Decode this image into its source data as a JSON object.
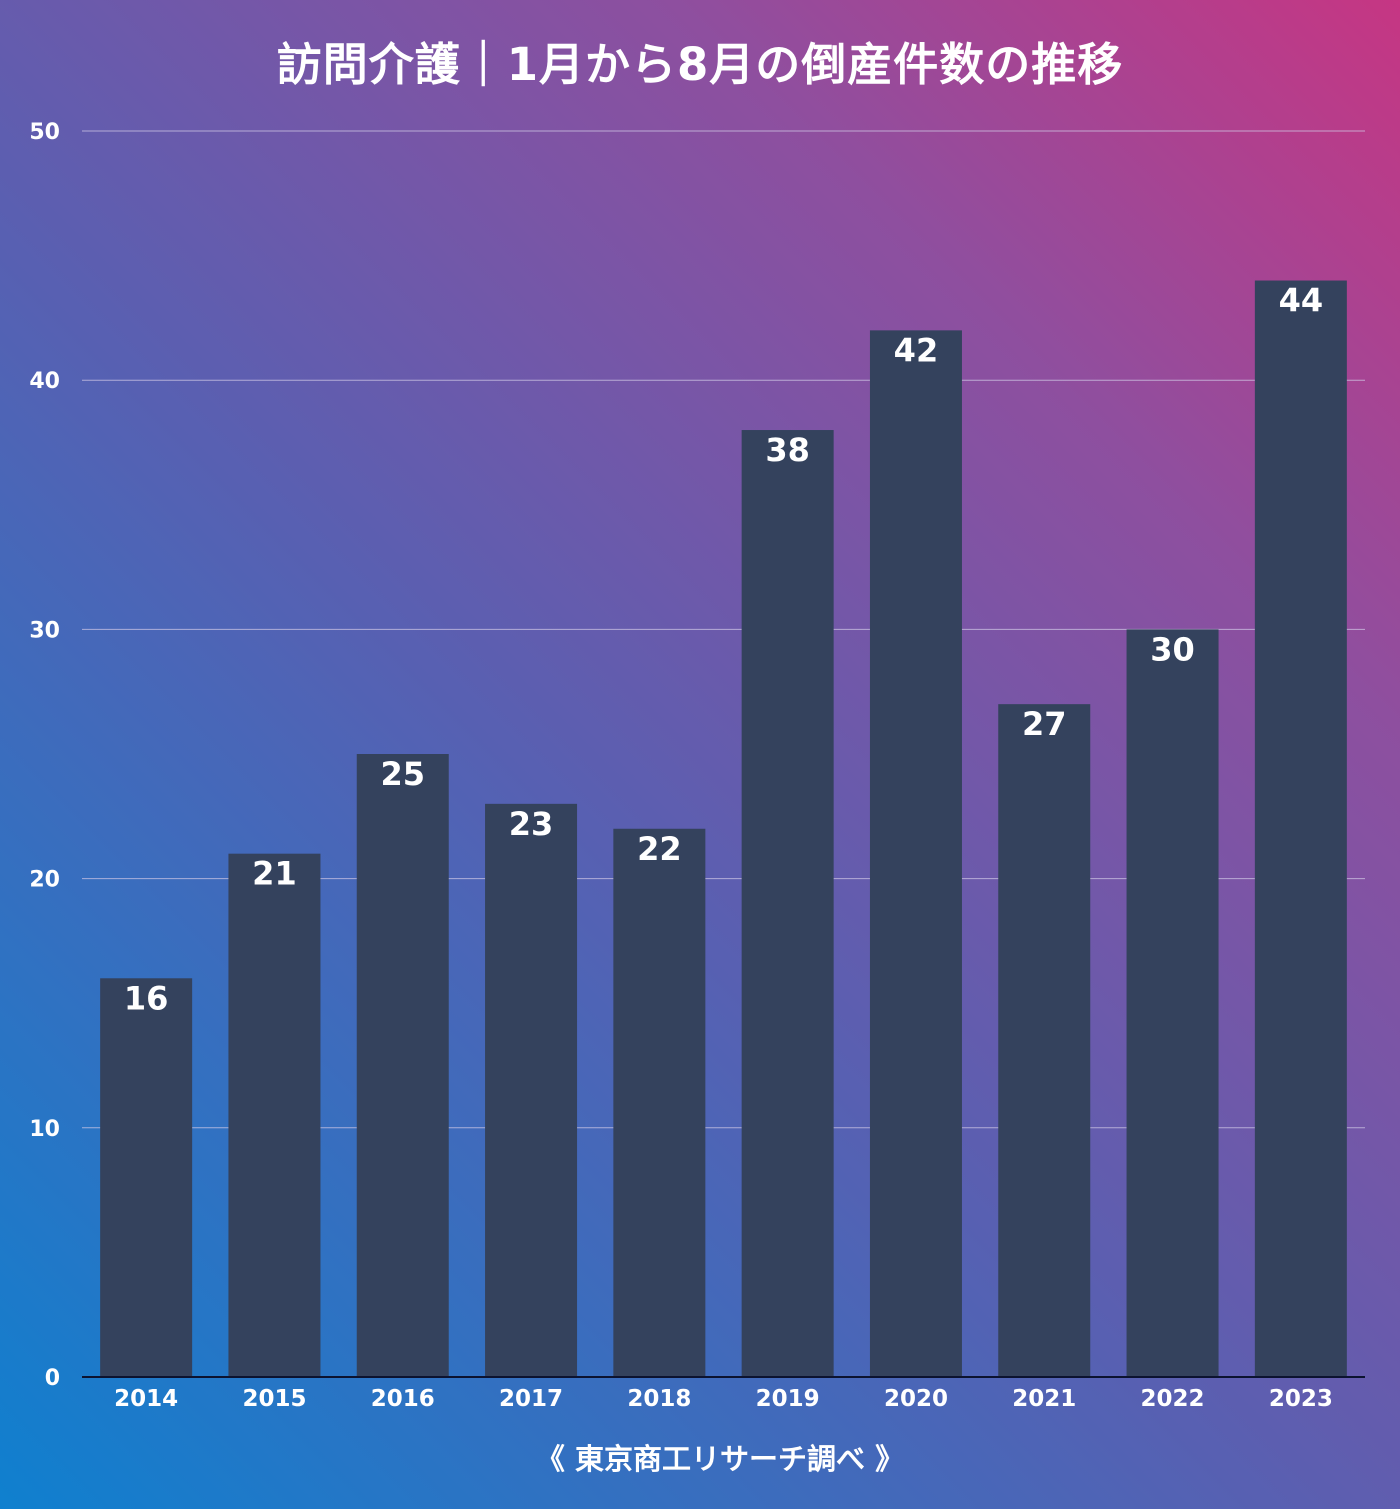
{
  "colors": {
    "bar": "#34425d",
    "gridline": "#d0c8e6",
    "axis": "#0c1330",
    "text": "#ffffff"
  },
  "chart_data": {
    "type": "bar",
    "title": "訪問介護｜1月から8月の倒産件数の推移",
    "categories": [
      "2014",
      "2015",
      "2016",
      "2017",
      "2018",
      "2019",
      "2020",
      "2021",
      "2022",
      "2023"
    ],
    "values": [
      16,
      21,
      25,
      23,
      22,
      38,
      42,
      27,
      30,
      44
    ],
    "ylim": [
      0,
      50
    ],
    "yticks": [
      0,
      10,
      20,
      30,
      40,
      50
    ],
    "grid": true,
    "xlabel": "",
    "ylabel": "",
    "source": "《 東京商工リサーチ調べ 》"
  }
}
